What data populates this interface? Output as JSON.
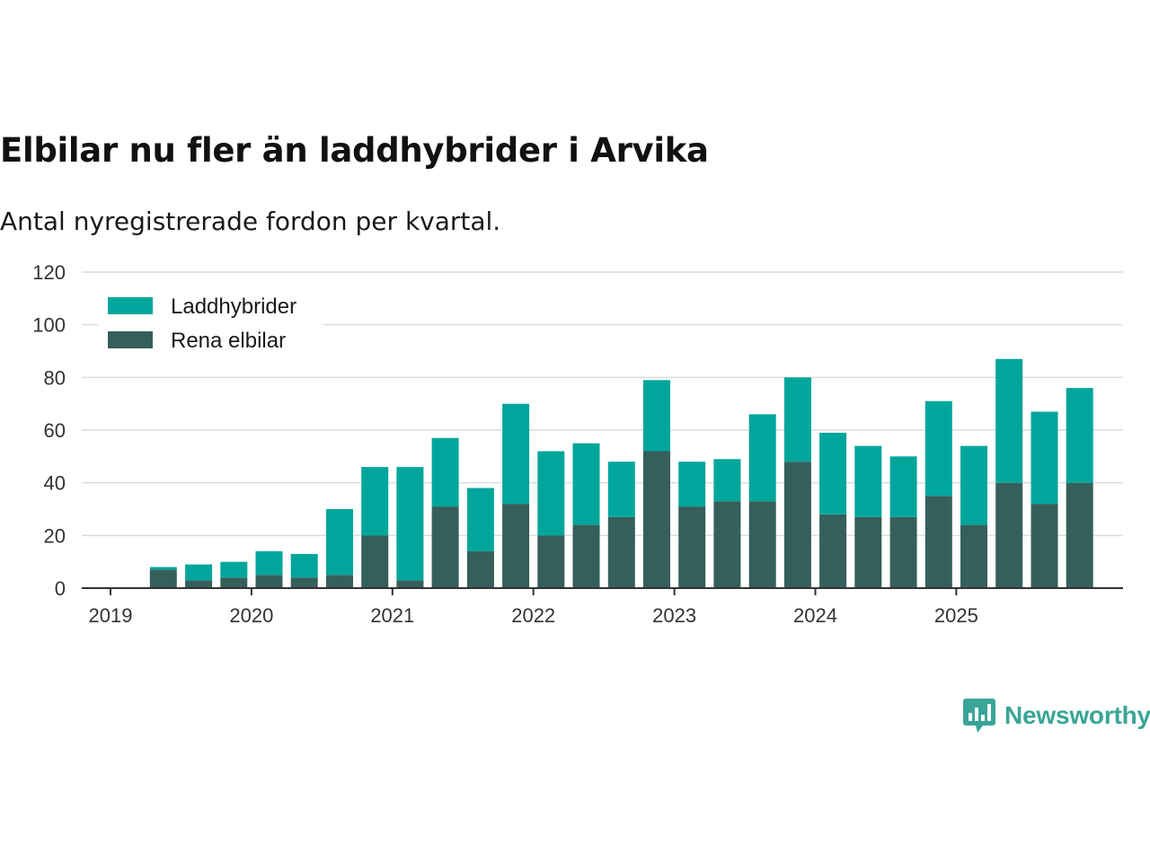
{
  "title": "Elbilar nu fler än laddhybrider i Arvika",
  "subtitle": "Antal nyregistrerade fordon per kvartal.",
  "brand": {
    "name": "Newsworthy",
    "color": "#3aa597",
    "icon": "newsworthy-logo-icon"
  },
  "chart_data": {
    "type": "bar",
    "stacked": true,
    "title": "Elbilar nu fler än laddhybrider i Arvika",
    "xlabel": "",
    "ylabel": "",
    "ylim": [
      0,
      120
    ],
    "yticks": [
      0,
      20,
      40,
      60,
      80,
      100,
      120
    ],
    "xticks": [
      "2019",
      "2020",
      "2021",
      "2022",
      "2023",
      "2024",
      "2025"
    ],
    "grid": true,
    "legend_position": "top-left",
    "categories": [
      "2019 Q2",
      "2019 Q3",
      "2019 Q4",
      "2020 Q1",
      "2020 Q2",
      "2020 Q3",
      "2020 Q4",
      "2021 Q1",
      "2021 Q2",
      "2021 Q3",
      "2021 Q4",
      "2022 Q1",
      "2022 Q2",
      "2022 Q3",
      "2022 Q4",
      "2023 Q1",
      "2023 Q2",
      "2023 Q3",
      "2023 Q4",
      "2024 Q1",
      "2024 Q2",
      "2024 Q3",
      "2024 Q4",
      "2025 Q1",
      "2025 Q2",
      "2025 Q3",
      "2025 Q4"
    ],
    "series": [
      {
        "name": "Rena elbilar",
        "color": "#355f5b",
        "values": [
          7,
          3,
          4,
          5,
          4,
          5,
          20,
          3,
          31,
          14,
          32,
          20,
          24,
          27,
          52,
          31,
          33,
          33,
          48,
          28,
          27,
          27,
          35,
          24,
          40,
          32,
          40
        ]
      },
      {
        "name": "Laddhybrider",
        "color": "#00a69c",
        "values": [
          1,
          6,
          6,
          9,
          9,
          25,
          26,
          43,
          26,
          24,
          38,
          32,
          31,
          21,
          27,
          17,
          16,
          33,
          32,
          31,
          27,
          23,
          36,
          30,
          47,
          35,
          36
        ]
      }
    ],
    "legend": [
      "Laddhybrider",
      "Rena elbilar"
    ]
  }
}
